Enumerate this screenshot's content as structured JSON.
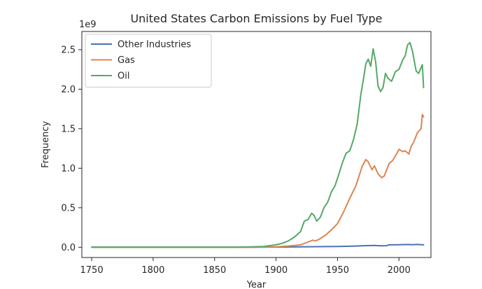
{
  "chart_data": {
    "type": "line",
    "title": "United States Carbon Emissions by Fuel Type",
    "xlabel": "Year",
    "ylabel": "Frequency",
    "y_offset_label": "1e9",
    "xlim": [
      1742,
      2026
    ],
    "ylim": [
      -0.13,
      2.73
    ],
    "xticks": [
      1750,
      1800,
      1850,
      1900,
      1950,
      2000
    ],
    "yticks": [
      0.0,
      0.5,
      1.0,
      1.5,
      2.0,
      2.5
    ],
    "ytick_labels": [
      "0.0",
      "0.5",
      "1.0",
      "1.5",
      "2.0",
      "2.5"
    ],
    "y_scale_note": "values in units of 1e9",
    "grid": false,
    "legend_position": "top-left",
    "series": [
      {
        "name": "Other Industries",
        "color": "#4c72b0",
        "x": [
          1750,
          1850,
          1880,
          1900,
          1920,
          1940,
          1950,
          1960,
          1970,
          1980,
          1985,
          1990,
          1992,
          2000,
          2008,
          2010,
          2015,
          2020
        ],
        "values": [
          0,
          0,
          0.001,
          0.002,
          0.005,
          0.008,
          0.01,
          0.013,
          0.018,
          0.022,
          0.018,
          0.02,
          0.03,
          0.032,
          0.035,
          0.032,
          0.035,
          0.03
        ]
      },
      {
        "name": "Gas",
        "color": "#dd8452",
        "x": [
          1750,
          1880,
          1900,
          1910,
          1920,
          1925,
          1930,
          1932,
          1935,
          1940,
          1945,
          1950,
          1955,
          1960,
          1965,
          1970,
          1973,
          1975,
          1978,
          1980,
          1983,
          1986,
          1988,
          1990,
          1992,
          1995,
          1998,
          2000,
          2003,
          2005,
          2008,
          2010,
          2012,
          2015,
          2018,
          2019,
          2020
        ],
        "values": [
          0,
          0,
          0.005,
          0.015,
          0.03,
          0.06,
          0.09,
          0.08,
          0.1,
          0.15,
          0.22,
          0.3,
          0.45,
          0.62,
          0.78,
          1.02,
          1.11,
          1.08,
          0.98,
          1.03,
          0.93,
          0.88,
          0.9,
          0.98,
          1.06,
          1.1,
          1.18,
          1.24,
          1.21,
          1.22,
          1.18,
          1.28,
          1.33,
          1.45,
          1.5,
          1.68,
          1.65
        ]
      },
      {
        "name": "Oil",
        "color": "#55a868",
        "x": [
          1750,
          1870,
          1880,
          1890,
          1900,
          1905,
          1910,
          1915,
          1920,
          1923,
          1926,
          1929,
          1931,
          1933,
          1936,
          1939,
          1942,
          1945,
          1948,
          1951,
          1954,
          1957,
          1960,
          1963,
          1966,
          1969,
          1971,
          1973,
          1975,
          1977,
          1979,
          1981,
          1983,
          1985,
          1987,
          1989,
          1991,
          1994,
          1997,
          2000,
          2003,
          2005,
          2007,
          2009,
          2011,
          2014,
          2016,
          2019,
          2020
        ],
        "values": [
          0,
          0,
          0.005,
          0.01,
          0.03,
          0.05,
          0.08,
          0.13,
          0.2,
          0.33,
          0.35,
          0.43,
          0.4,
          0.33,
          0.38,
          0.5,
          0.57,
          0.7,
          0.78,
          0.92,
          1.07,
          1.19,
          1.22,
          1.36,
          1.56,
          1.93,
          2.12,
          2.32,
          2.38,
          2.29,
          2.51,
          2.35,
          2.04,
          1.97,
          2.02,
          2.2,
          2.14,
          2.1,
          2.22,
          2.25,
          2.37,
          2.42,
          2.56,
          2.59,
          2.48,
          2.23,
          2.2,
          2.31,
          2.02
        ]
      }
    ]
  }
}
